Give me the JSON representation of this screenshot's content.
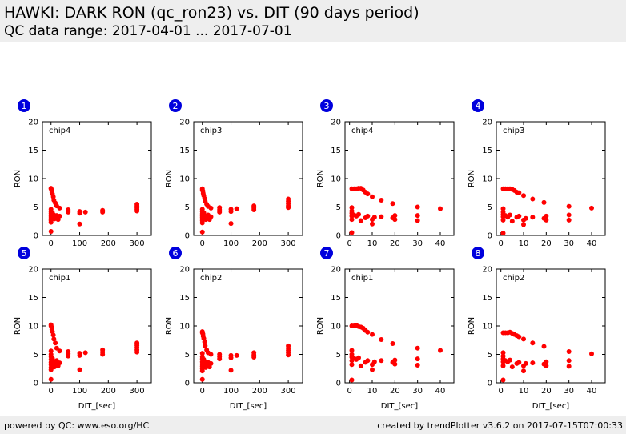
{
  "header": {
    "title": "HAWKI: DARK RON (qc_ron23) vs. DIT (90 days period)",
    "subtitle": "QC data range: 2017-04-01 ... 2017-07-01"
  },
  "footer": {
    "left": "powered by QC: www.eso.org/HC",
    "right": "created by trendPlotter v3.6.2 on 2017-07-15T07:00:33"
  },
  "colors": {
    "marker": "#ff0000",
    "badge": "#0000dd",
    "header_bg": "#eeeeee"
  },
  "chart_data": [
    {
      "type": "scatter",
      "panel": "1",
      "label": "chip4",
      "ylabel": "RON",
      "xlabel": "",
      "xlim": [
        -30,
        350
      ],
      "ylim": [
        0,
        20
      ],
      "xticks": [
        0,
        100,
        200,
        300
      ],
      "yticks": [
        0,
        5,
        10,
        15,
        20
      ],
      "points": [
        [
          0,
          8.3
        ],
        [
          0,
          8.2
        ],
        [
          2,
          8
        ],
        [
          3,
          7.6
        ],
        [
          5,
          7.3
        ],
        [
          8,
          6.8
        ],
        [
          10,
          6.2
        ],
        [
          15,
          5.7
        ],
        [
          20,
          5.2
        ],
        [
          30,
          4.8
        ],
        [
          0,
          4.6
        ],
        [
          0,
          4.2
        ],
        [
          0,
          3.9
        ],
        [
          0,
          3.6
        ],
        [
          0,
          3.4
        ],
        [
          0,
          3.1
        ],
        [
          0,
          2.8
        ],
        [
          0,
          2.6
        ],
        [
          0,
          2.3
        ],
        [
          0,
          0.7
        ],
        [
          5,
          4
        ],
        [
          5,
          3.2
        ],
        [
          8,
          3
        ],
        [
          10,
          3.6
        ],
        [
          12,
          2.9
        ],
        [
          15,
          3.3
        ],
        [
          20,
          3.5
        ],
        [
          25,
          2.8
        ],
        [
          30,
          3.4
        ],
        [
          60,
          4.5
        ],
        [
          60,
          4.1
        ],
        [
          100,
          4.2
        ],
        [
          100,
          3.9
        ],
        [
          100,
          2
        ],
        [
          120,
          4.1
        ],
        [
          180,
          4.4
        ],
        [
          180,
          4.1
        ],
        [
          300,
          5.5
        ],
        [
          300,
          5.2
        ],
        [
          300,
          4.9
        ],
        [
          300,
          4.6
        ],
        [
          300,
          4.3
        ]
      ]
    },
    {
      "type": "scatter",
      "panel": "2",
      "label": "chip3",
      "ylabel": "RON",
      "xlabel": "",
      "xlim": [
        -30,
        350
      ],
      "ylim": [
        0,
        20
      ],
      "xticks": [
        0,
        100,
        200,
        300
      ],
      "yticks": [
        0,
        5,
        10,
        15,
        20
      ],
      "points": [
        [
          0,
          8.2
        ],
        [
          0,
          8
        ],
        [
          2,
          7.8
        ],
        [
          3,
          7.4
        ],
        [
          5,
          7
        ],
        [
          8,
          6.5
        ],
        [
          10,
          6
        ],
        [
          15,
          5.5
        ],
        [
          20,
          5.1
        ],
        [
          30,
          4.8
        ],
        [
          0,
          4.6
        ],
        [
          0,
          4.2
        ],
        [
          0,
          3.8
        ],
        [
          0,
          3.5
        ],
        [
          0,
          3.2
        ],
        [
          0,
          2.9
        ],
        [
          0,
          2.6
        ],
        [
          0,
          2.2
        ],
        [
          0,
          0.6
        ],
        [
          5,
          4
        ],
        [
          5,
          3.1
        ],
        [
          8,
          2.9
        ],
        [
          10,
          3.5
        ],
        [
          12,
          2.8
        ],
        [
          15,
          3.2
        ],
        [
          20,
          3.6
        ],
        [
          25,
          2.8
        ],
        [
          30,
          3.3
        ],
        [
          60,
          4.9
        ],
        [
          60,
          4.5
        ],
        [
          60,
          4.1
        ],
        [
          100,
          4.6
        ],
        [
          100,
          4.2
        ],
        [
          100,
          2.1
        ],
        [
          120,
          4.7
        ],
        [
          180,
          5.2
        ],
        [
          180,
          4.8
        ],
        [
          180,
          4.5
        ],
        [
          300,
          6.4
        ],
        [
          300,
          6
        ],
        [
          300,
          5.6
        ],
        [
          300,
          5.2
        ],
        [
          300,
          4.9
        ]
      ]
    },
    {
      "type": "scatter",
      "panel": "3",
      "label": "chip4",
      "ylabel": "RON",
      "xlabel": "",
      "xlim": [
        -2,
        46
      ],
      "ylim": [
        0,
        20
      ],
      "xticks": [
        0,
        10,
        20,
        30,
        40
      ],
      "yticks": [
        0,
        5,
        10,
        15,
        20
      ],
      "points": [
        [
          1,
          8.2
        ],
        [
          2,
          8.2
        ],
        [
          3,
          8.2
        ],
        [
          4,
          8.3
        ],
        [
          5,
          8.3
        ],
        [
          6,
          8
        ],
        [
          7,
          7.6
        ],
        [
          8,
          7.3
        ],
        [
          10,
          6.8
        ],
        [
          14,
          6.2
        ],
        [
          19,
          5.6
        ],
        [
          1,
          4.9
        ],
        [
          1,
          4.3
        ],
        [
          1,
          3.9
        ],
        [
          1,
          3.4
        ],
        [
          1,
          2.8
        ],
        [
          1,
          0.5
        ],
        [
          2,
          3.6
        ],
        [
          3,
          3.4
        ],
        [
          4,
          3.7
        ],
        [
          5,
          2.6
        ],
        [
          7,
          3.1
        ],
        [
          8,
          3.4
        ],
        [
          10,
          2.8
        ],
        [
          10,
          2
        ],
        [
          11,
          3.2
        ],
        [
          14,
          3.3
        ],
        [
          19,
          3.1
        ],
        [
          20,
          3.5
        ],
        [
          20,
          2.8
        ],
        [
          30,
          5
        ],
        [
          30,
          3.5
        ],
        [
          30,
          2.6
        ],
        [
          40,
          4.7
        ]
      ]
    },
    {
      "type": "scatter",
      "panel": "4",
      "label": "chip3",
      "ylabel": "RON",
      "xlabel": "",
      "xlim": [
        -2,
        46
      ],
      "ylim": [
        0,
        20
      ],
      "xticks": [
        0,
        10,
        20,
        30,
        40
      ],
      "yticks": [
        0,
        5,
        10,
        15,
        20
      ],
      "points": [
        [
          1,
          8.2
        ],
        [
          2,
          8.2
        ],
        [
          3,
          8.2
        ],
        [
          4,
          8.2
        ],
        [
          5,
          8.1
        ],
        [
          6,
          7.9
        ],
        [
          7,
          7.6
        ],
        [
          8,
          7.5
        ],
        [
          10,
          7
        ],
        [
          14,
          6.4
        ],
        [
          19,
          5.8
        ],
        [
          1,
          4.7
        ],
        [
          1,
          4.1
        ],
        [
          1,
          3.7
        ],
        [
          1,
          3.3
        ],
        [
          1,
          2.7
        ],
        [
          1,
          0.4
        ],
        [
          2,
          3.5
        ],
        [
          3,
          3.2
        ],
        [
          4,
          3.6
        ],
        [
          5,
          2.5
        ],
        [
          7,
          3.2
        ],
        [
          8,
          3.4
        ],
        [
          10,
          2.7
        ],
        [
          10,
          1.9
        ],
        [
          11,
          3
        ],
        [
          14,
          3.2
        ],
        [
          19,
          3
        ],
        [
          20,
          3.4
        ],
        [
          20,
          2.7
        ],
        [
          30,
          5.1
        ],
        [
          30,
          3.6
        ],
        [
          30,
          2.7
        ],
        [
          40,
          4.8
        ]
      ]
    },
    {
      "type": "scatter",
      "panel": "5",
      "label": "chip1",
      "ylabel": "RON",
      "xlabel": "DIT_[sec]",
      "xlim": [
        -30,
        350
      ],
      "ylim": [
        0,
        20
      ],
      "xticks": [
        0,
        100,
        200,
        300
      ],
      "yticks": [
        0,
        5,
        10,
        15,
        20
      ],
      "points": [
        [
          0,
          10.2
        ],
        [
          0,
          10
        ],
        [
          2,
          9.8
        ],
        [
          3,
          9.4
        ],
        [
          5,
          9
        ],
        [
          8,
          8.4
        ],
        [
          10,
          7.7
        ],
        [
          15,
          7
        ],
        [
          20,
          6.1
        ],
        [
          30,
          5.6
        ],
        [
          0,
          5.6
        ],
        [
          0,
          5
        ],
        [
          0,
          4.6
        ],
        [
          0,
          4.1
        ],
        [
          0,
          3.6
        ],
        [
          0,
          3.2
        ],
        [
          0,
          2.7
        ],
        [
          0,
          2.3
        ],
        [
          0,
          0.6
        ],
        [
          5,
          4.3
        ],
        [
          5,
          3.1
        ],
        [
          8,
          2.8
        ],
        [
          10,
          3.8
        ],
        [
          12,
          2.8
        ],
        [
          15,
          3.4
        ],
        [
          20,
          3.9
        ],
        [
          25,
          3
        ],
        [
          30,
          3.5
        ],
        [
          60,
          5.5
        ],
        [
          60,
          5.1
        ],
        [
          60,
          4.7
        ],
        [
          100,
          5.2
        ],
        [
          100,
          4.8
        ],
        [
          100,
          2.3
        ],
        [
          120,
          5.3
        ],
        [
          180,
          5.8
        ],
        [
          180,
          5.4
        ],
        [
          180,
          5
        ],
        [
          300,
          7
        ],
        [
          300,
          6.6
        ],
        [
          300,
          6.2
        ],
        [
          300,
          5.8
        ],
        [
          300,
          5.4
        ]
      ]
    },
    {
      "type": "scatter",
      "panel": "6",
      "label": "chip2",
      "ylabel": "RON",
      "xlabel": "DIT_[sec]",
      "xlim": [
        -30,
        350
      ],
      "ylim": [
        0,
        20
      ],
      "xticks": [
        0,
        100,
        200,
        300
      ],
      "yticks": [
        0,
        5,
        10,
        15,
        20
      ],
      "points": [
        [
          0,
          9
        ],
        [
          0,
          8.8
        ],
        [
          2,
          8.6
        ],
        [
          3,
          8.2
        ],
        [
          5,
          7.8
        ],
        [
          8,
          7.2
        ],
        [
          10,
          6.5
        ],
        [
          15,
          5.8
        ],
        [
          20,
          5.3
        ],
        [
          30,
          5
        ],
        [
          0,
          5.2
        ],
        [
          0,
          4.6
        ],
        [
          0,
          4.2
        ],
        [
          0,
          3.7
        ],
        [
          0,
          3.3
        ],
        [
          0,
          2.9
        ],
        [
          0,
          2.5
        ],
        [
          0,
          2.1
        ],
        [
          0,
          0.6
        ],
        [
          5,
          4.1
        ],
        [
          5,
          3
        ],
        [
          8,
          2.8
        ],
        [
          10,
          3.6
        ],
        [
          12,
          2.7
        ],
        [
          15,
          3.2
        ],
        [
          20,
          3.6
        ],
        [
          25,
          2.8
        ],
        [
          30,
          3.4
        ],
        [
          60,
          5
        ],
        [
          60,
          4.6
        ],
        [
          60,
          4.2
        ],
        [
          100,
          4.8
        ],
        [
          100,
          4.4
        ],
        [
          100,
          2.2
        ],
        [
          120,
          4.8
        ],
        [
          180,
          5.3
        ],
        [
          180,
          4.9
        ],
        [
          180,
          4.5
        ],
        [
          300,
          6.5
        ],
        [
          300,
          6.1
        ],
        [
          300,
          5.7
        ],
        [
          300,
          5.3
        ],
        [
          300,
          4.9
        ]
      ]
    },
    {
      "type": "scatter",
      "panel": "7",
      "label": "chip1",
      "ylabel": "RON",
      "xlabel": "DIT_[sec]",
      "xlim": [
        -2,
        46
      ],
      "ylim": [
        0,
        20
      ],
      "xticks": [
        0,
        10,
        20,
        30,
        40
      ],
      "yticks": [
        0,
        5,
        10,
        15,
        20
      ],
      "points": [
        [
          1,
          10
        ],
        [
          2,
          10
        ],
        [
          3,
          10.1
        ],
        [
          4,
          9.9
        ],
        [
          5,
          9.8
        ],
        [
          6,
          9.6
        ],
        [
          7,
          9.2
        ],
        [
          8,
          8.9
        ],
        [
          10,
          8.5
        ],
        [
          14,
          7.6
        ],
        [
          19,
          6.9
        ],
        [
          1,
          5.7
        ],
        [
          1,
          5
        ],
        [
          1,
          4.5
        ],
        [
          1,
          3.9
        ],
        [
          1,
          3.2
        ],
        [
          1,
          0.5
        ],
        [
          2,
          4.3
        ],
        [
          3,
          4.1
        ],
        [
          4,
          4.4
        ],
        [
          5,
          3
        ],
        [
          7,
          3.6
        ],
        [
          8,
          3.9
        ],
        [
          10,
          3.2
        ],
        [
          10,
          2.3
        ],
        [
          11,
          3.7
        ],
        [
          14,
          3.9
        ],
        [
          19,
          3.6
        ],
        [
          20,
          4
        ],
        [
          20,
          3.3
        ],
        [
          30,
          6.1
        ],
        [
          30,
          4.2
        ],
        [
          30,
          3.1
        ],
        [
          40,
          5.7
        ]
      ]
    },
    {
      "type": "scatter",
      "panel": "8",
      "label": "chip2",
      "ylabel": "RON",
      "xlabel": "DIT_[sec]",
      "xlim": [
        -2,
        46
      ],
      "ylim": [
        0,
        20
      ],
      "xticks": [
        0,
        10,
        20,
        30,
        40
      ],
      "yticks": [
        0,
        5,
        10,
        15,
        20
      ],
      "points": [
        [
          1,
          8.8
        ],
        [
          2,
          8.8
        ],
        [
          3,
          8.8
        ],
        [
          4,
          8.9
        ],
        [
          5,
          8.7
        ],
        [
          6,
          8.5
        ],
        [
          7,
          8.3
        ],
        [
          8,
          8.1
        ],
        [
          10,
          7.7
        ],
        [
          14,
          7
        ],
        [
          19,
          6.4
        ],
        [
          1,
          5.3
        ],
        [
          1,
          4.7
        ],
        [
          1,
          4.2
        ],
        [
          1,
          3.7
        ],
        [
          1,
          3
        ],
        [
          1,
          0.5
        ],
        [
          2,
          3.9
        ],
        [
          3,
          3.7
        ],
        [
          4,
          4
        ],
        [
          5,
          2.8
        ],
        [
          7,
          3.4
        ],
        [
          8,
          3.6
        ],
        [
          10,
          3
        ],
        [
          10,
          2.1
        ],
        [
          11,
          3.4
        ],
        [
          14,
          3.5
        ],
        [
          19,
          3.3
        ],
        [
          20,
          3.7
        ],
        [
          20,
          3
        ],
        [
          30,
          5.5
        ],
        [
          30,
          3.9
        ],
        [
          30,
          2.9
        ],
        [
          40,
          5.1
        ]
      ]
    }
  ]
}
